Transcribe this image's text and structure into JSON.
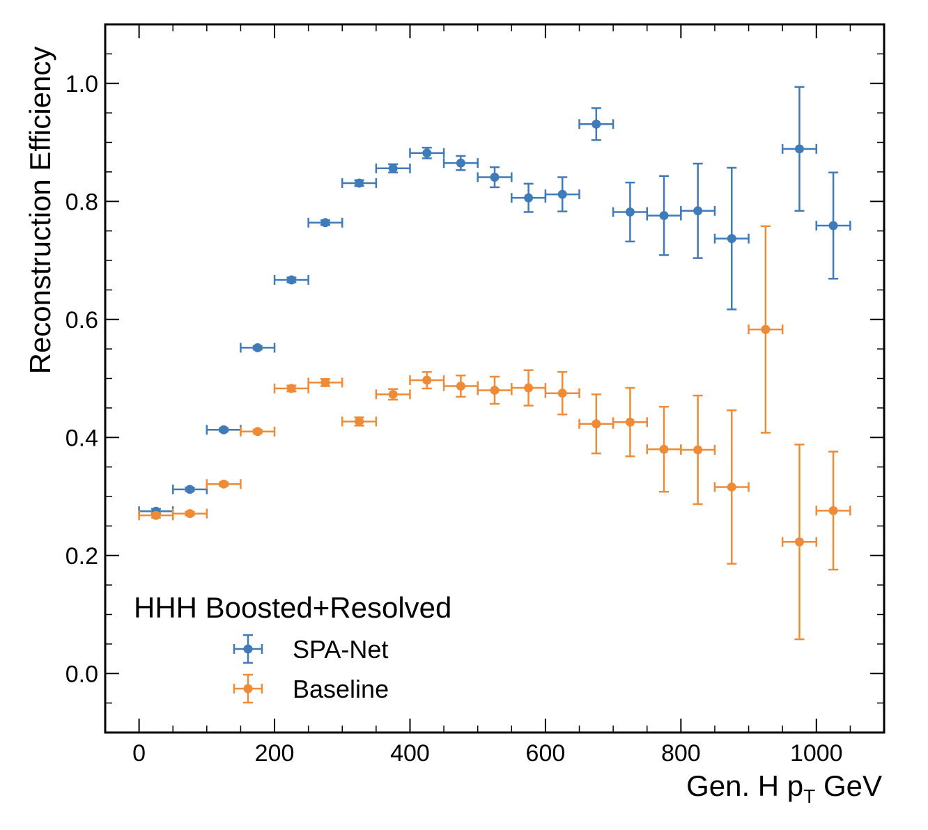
{
  "chart_data": {
    "type": "scatter",
    "title": "",
    "xlabel": "Gen. H p",
    "xlabel_subscript": "T",
    "xlabel_suffix": " GeV",
    "ylabel": "Reconstruction Efficiency",
    "xlim": [
      -50,
      1100
    ],
    "ylim": [
      -0.1,
      1.1
    ],
    "xticks": [
      0,
      200,
      400,
      600,
      800,
      1000
    ],
    "xtick_labels": [
      "0",
      "200",
      "400",
      "600",
      "800",
      "1000"
    ],
    "yticks": [
      0.0,
      0.2,
      0.4,
      0.6,
      0.8,
      1.0
    ],
    "ytick_labels": [
      "0.0",
      "0.2",
      "0.4",
      "0.6",
      "0.8",
      "1.0"
    ],
    "grid": false,
    "legend_title": "HHH Boosted+Resolved",
    "legend_position": "bottom-left",
    "bin_half_width": 25,
    "series": [
      {
        "name": "SPA-Net",
        "color": "#3f7ab9",
        "x": [
          25,
          75,
          125,
          175,
          225,
          275,
          325,
          375,
          425,
          475,
          525,
          575,
          625,
          675,
          725,
          775,
          825,
          875,
          975,
          1025
        ],
        "y": [
          0.275,
          0.312,
          0.413,
          0.552,
          0.667,
          0.764,
          0.831,
          0.856,
          0.882,
          0.865,
          0.841,
          0.806,
          0.812,
          0.931,
          0.782,
          0.776,
          0.784,
          0.737,
          0.889,
          0.759
        ],
        "yerr": [
          0.004,
          0.003,
          0.003,
          0.003,
          0.004,
          0.004,
          0.005,
          0.007,
          0.009,
          0.012,
          0.017,
          0.024,
          0.029,
          0.027,
          0.05,
          0.067,
          0.08,
          0.12,
          0.105,
          0.09
        ]
      },
      {
        "name": "Baseline",
        "color": "#ef8b36",
        "x": [
          25,
          75,
          125,
          175,
          225,
          275,
          325,
          375,
          425,
          475,
          525,
          575,
          625,
          675,
          725,
          775,
          825,
          875,
          925,
          975,
          1025
        ],
        "y": [
          0.268,
          0.271,
          0.321,
          0.41,
          0.483,
          0.493,
          0.427,
          0.473,
          0.497,
          0.487,
          0.48,
          0.484,
          0.475,
          0.423,
          0.426,
          0.38,
          0.379,
          0.316,
          0.583,
          0.223,
          0.276
        ],
        "yerr": [
          0.004,
          0.003,
          0.003,
          0.003,
          0.005,
          0.006,
          0.007,
          0.009,
          0.014,
          0.018,
          0.023,
          0.03,
          0.036,
          0.05,
          0.058,
          0.072,
          0.092,
          0.13,
          0.175,
          0.165,
          0.1
        ]
      }
    ]
  }
}
